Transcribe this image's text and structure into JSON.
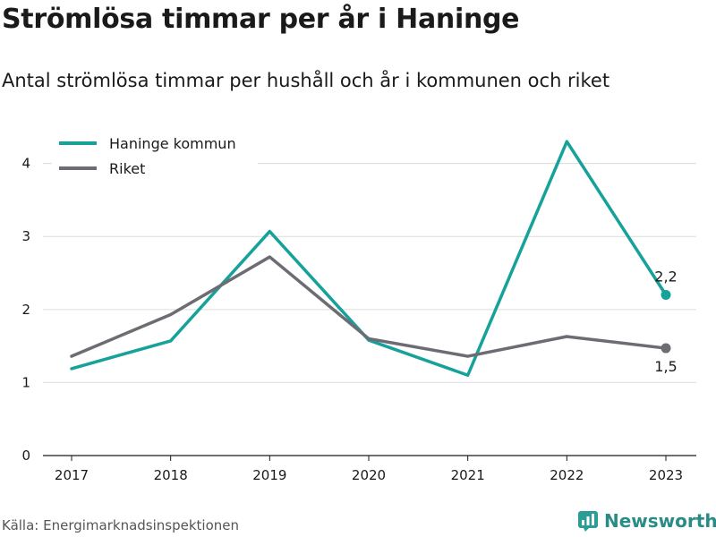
{
  "title": "Strömlösa timmar per år i Haninge",
  "subtitle": "Antal strömlösa timmar per hushåll och år i kommunen och riket",
  "source": "Källa: Energimarknadsinspektionen",
  "brand": {
    "name": "Newsworthy",
    "icon": "newsworthy-logo-icon",
    "color": "#2a9d96"
  },
  "chart_data": {
    "type": "line",
    "categories": [
      "2017",
      "2018",
      "2019",
      "2020",
      "2021",
      "2022",
      "2023"
    ],
    "ylim": [
      0,
      4.4
    ],
    "yticks": [
      0,
      1,
      2,
      3,
      4
    ],
    "ytick_labels": [
      "0",
      "1",
      "2",
      "3",
      "4"
    ],
    "grid": true,
    "legend_position": "top-left",
    "series": [
      {
        "name": "Haninge kommun",
        "color": "#16a19a",
        "values": [
          1.19,
          1.57,
          3.07,
          1.58,
          1.1,
          4.3,
          2.2
        ],
        "end_label": "2,2"
      },
      {
        "name": "Riket",
        "color": "#6d6c72",
        "values": [
          1.36,
          1.93,
          2.72,
          1.6,
          1.36,
          1.63,
          1.47
        ],
        "end_label": "1,5"
      }
    ]
  }
}
